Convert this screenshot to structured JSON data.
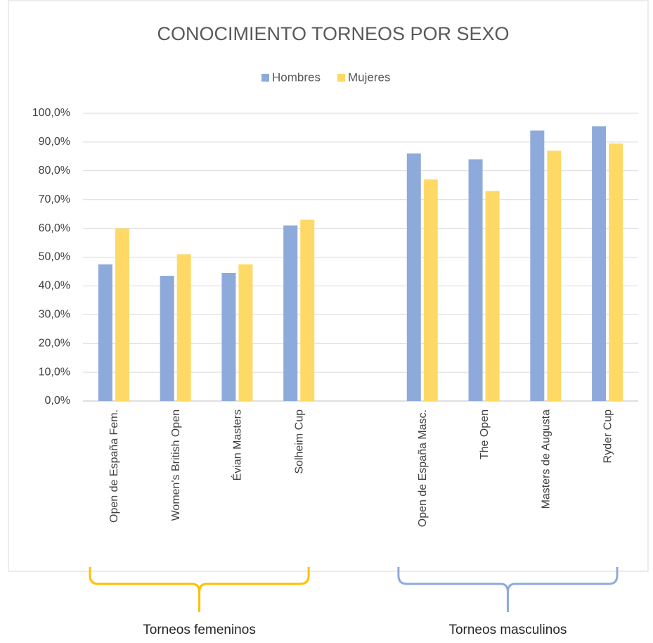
{
  "chart_data": {
    "type": "bar",
    "title": "CONOCIMIENTO TORNEOS POR SEXO",
    "categories": [
      "Open de España Fem.",
      "Women's British Open",
      "Évian Masters",
      "Solheim Cup",
      null,
      "Open de España Masc.",
      "The Open",
      "Masters de Augusta",
      "Ryder Cup"
    ],
    "series": [
      {
        "name": "Hombres",
        "color": "#8eaadb",
        "values": [
          47.5,
          43.5,
          44.5,
          61,
          null,
          86,
          84,
          94,
          95.5
        ]
      },
      {
        "name": "Mujeres",
        "color": "#ffd966",
        "values": [
          60,
          51,
          47.5,
          63,
          null,
          77,
          73,
          87,
          89.5
        ]
      }
    ],
    "ylim": [
      0,
      100
    ],
    "yticks": [
      {
        "value": 0,
        "label": "0,0%"
      },
      {
        "value": 10,
        "label": "10,0%"
      },
      {
        "value": 20,
        "label": "20,0%"
      },
      {
        "value": 30,
        "label": "30,0%"
      },
      {
        "value": 40,
        "label": "40,0%"
      },
      {
        "value": 50,
        "label": "50,0%"
      },
      {
        "value": 60,
        "label": "60,0%"
      },
      {
        "value": 70,
        "label": "70,0%"
      },
      {
        "value": 80,
        "label": "80,0%"
      },
      {
        "value": 90,
        "label": "90,0%"
      },
      {
        "value": 100,
        "label": "100,0%"
      }
    ],
    "grid": true,
    "legend": "top",
    "groups": [
      {
        "label": "Torneos femeninos",
        "color": "#ffc000"
      },
      {
        "label": "Torneos masculinos",
        "color": "#8faadc"
      }
    ]
  }
}
